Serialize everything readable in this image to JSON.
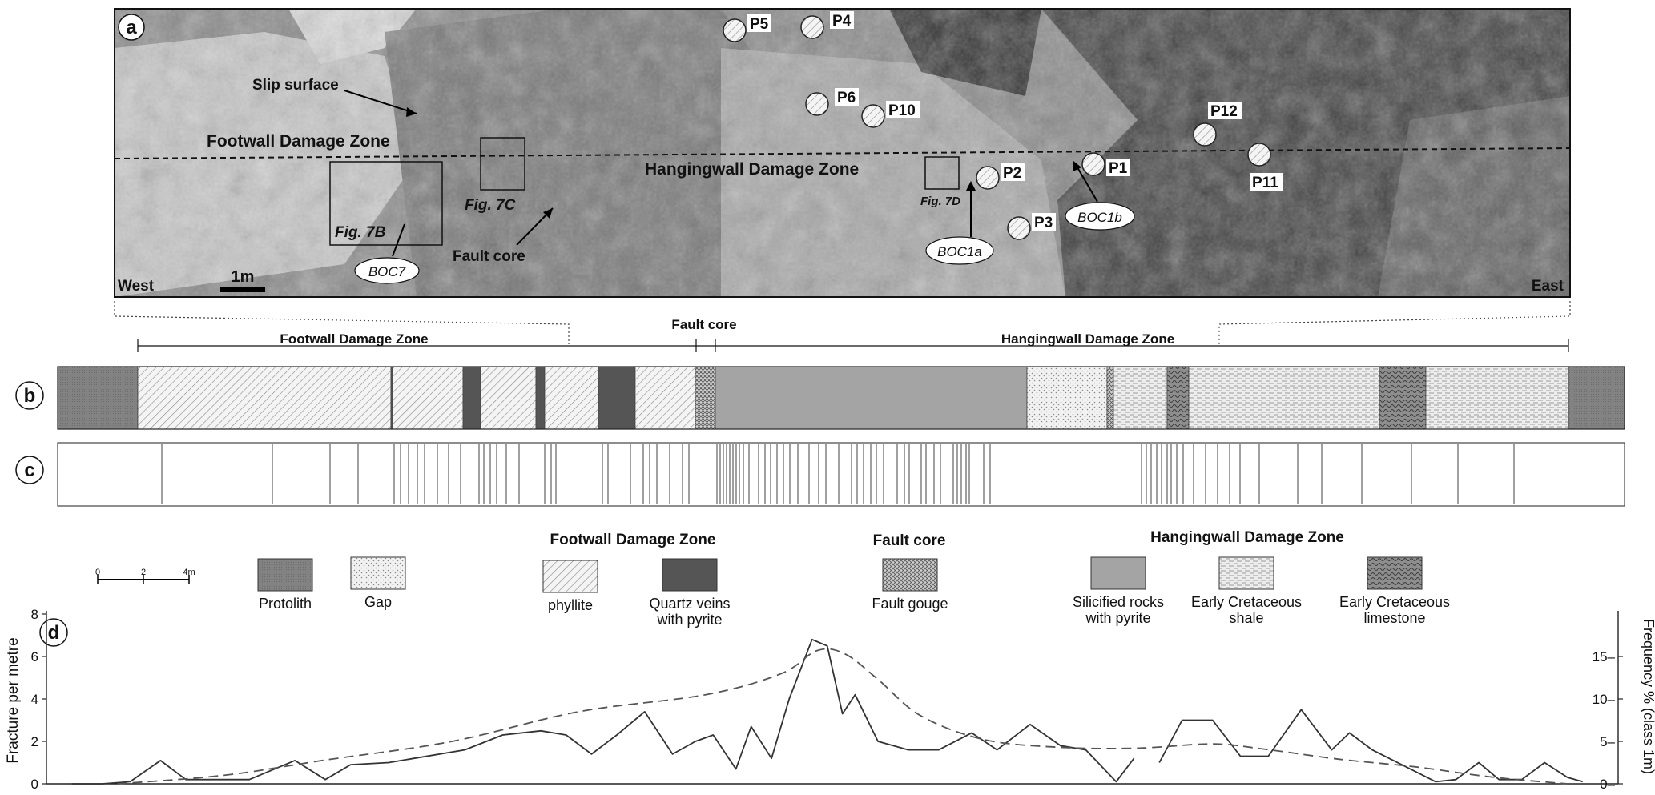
{
  "panel_a": {
    "letter": "a",
    "west": "West",
    "east": "East",
    "scale": "1m",
    "slip_surface": "Slip surface",
    "footwall_damage_zone": "Footwall Damage Zone",
    "hangingwall_damage_zone": "Hangingwall Damage Zone",
    "fault_core": "Fault core",
    "fig_7b": "Fig. 7B",
    "fig_7c": "Fig. 7C",
    "fig_7d": "Fig. 7D",
    "points": [
      "P5",
      "P4",
      "P6",
      "P10",
      "P2",
      "P3",
      "P1",
      "P12",
      "P11"
    ],
    "sample_labels": [
      "BOC7",
      "BOC1a",
      "BOC1b"
    ]
  },
  "panel_b": {
    "letter": "b",
    "footwall_label": "Footwall Damage Zone",
    "fault_core_label": "Fault core",
    "hangingwall_label": "Hangingwall Damage Zone"
  },
  "panel_c": {
    "letter": "c"
  },
  "legend": {
    "scale": {
      "zero": "0",
      "two": "2",
      "four": "4m"
    },
    "group_footwall": "Footwall Damage Zone",
    "group_fault_core": "Fault core",
    "group_hangingwall": "Hangingwall Damage Zone",
    "items": [
      {
        "key": "protolith",
        "label": "Protolith"
      },
      {
        "key": "gap",
        "label": "Gap"
      },
      {
        "key": "phyllite",
        "label": "phyllite"
      },
      {
        "key": "quartz",
        "label": "Quartz veins\nwith pyrite"
      },
      {
        "key": "gouge",
        "label": "Fault gouge"
      },
      {
        "key": "silicified",
        "label": "Silicified rocks\nwith pyrite"
      },
      {
        "key": "shale",
        "label": "Early Cretaceous\nshale"
      },
      {
        "key": "limestone",
        "label": "Early Cretaceous\nlimestone"
      }
    ]
  },
  "chart_data": {
    "type": "line",
    "panel_letter": "d",
    "ylabel": "Fracture per metre",
    "y2label": "Frequency % (class 1m)",
    "ylim": [
      0,
      8
    ],
    "y2lim": [
      0,
      20
    ],
    "yticks": [
      "0",
      "2",
      "4",
      "6",
      "8"
    ],
    "y2ticks": [
      "0",
      "5",
      "10",
      "15"
    ],
    "x_unit": "m along section",
    "series": [
      {
        "style": "solid",
        "segments": [
          [
            [
              0,
              0
            ],
            [
              1.2,
              0
            ],
            [
              2.3,
              0.1
            ],
            [
              3.5,
              1.1
            ],
            [
              4.5,
              0.2
            ],
            [
              7.0,
              0.2
            ],
            [
              8.8,
              1.1
            ],
            [
              10.0,
              0.2
            ],
            [
              11.0,
              0.9
            ],
            [
              12.5,
              1.0
            ],
            [
              13.5,
              1.2
            ],
            [
              15.5,
              1.6
            ],
            [
              17.0,
              2.3
            ],
            [
              18.5,
              2.5
            ],
            [
              19.5,
              2.3
            ],
            [
              20.5,
              1.4
            ],
            [
              21.5,
              2.3
            ],
            [
              22.6,
              3.4
            ],
            [
              23.7,
              1.4
            ],
            [
              24.6,
              2.0
            ],
            [
              25.3,
              2.3
            ],
            [
              26.2,
              0.7
            ],
            [
              26.8,
              2.7
            ],
            [
              27.6,
              1.2
            ],
            [
              28.3,
              4.0
            ],
            [
              29.2,
              6.8
            ],
            [
              29.8,
              6.5
            ],
            [
              30.4,
              3.3
            ],
            [
              30.9,
              4.2
            ],
            [
              31.8,
              2.0
            ],
            [
              33.0,
              1.6
            ],
            [
              34.2,
              1.6
            ],
            [
              35.5,
              2.4
            ],
            [
              36.5,
              1.6
            ],
            [
              37.8,
              2.8
            ],
            [
              39.0,
              1.8
            ],
            [
              40.0,
              1.6
            ],
            [
              41.2,
              0.1
            ],
            [
              41.9,
              1.2
            ]
          ],
          [
            [
              42.9,
              1.0
            ],
            [
              43.8,
              3.0
            ],
            [
              45.0,
              3.0
            ],
            [
              46.1,
              1.3
            ],
            [
              47.2,
              1.3
            ],
            [
              48.5,
              3.5
            ],
            [
              49.7,
              1.6
            ],
            [
              50.4,
              2.4
            ],
            [
              51.3,
              1.6
            ],
            [
              53.8,
              0.1
            ],
            [
              54.6,
              0.2
            ],
            [
              55.5,
              1.0
            ],
            [
              56.3,
              0.2
            ],
            [
              57.2,
              0.2
            ],
            [
              58.1,
              1.0
            ],
            [
              59.0,
              0.3
            ],
            [
              59.6,
              0.1
            ]
          ]
        ]
      },
      {
        "style": "dashed",
        "axis": "right",
        "points": [
          [
            1.8,
            0
          ],
          [
            6,
            1
          ],
          [
            10,
            2.8
          ],
          [
            15,
            5
          ],
          [
            20,
            8.5
          ],
          [
            25,
            10.5
          ],
          [
            28,
            13
          ],
          [
            29.4,
            15.7
          ],
          [
            30.5,
            15.3
          ],
          [
            31.8,
            12.3
          ],
          [
            33.5,
            8
          ],
          [
            36,
            5.2
          ],
          [
            39,
            4.3
          ],
          [
            42,
            4.2
          ],
          [
            45,
            4.7
          ],
          [
            47,
            4.1
          ],
          [
            50,
            2.9
          ],
          [
            53,
            2.0
          ],
          [
            56,
            0.8
          ],
          [
            59,
            0
          ]
        ]
      }
    ],
    "xlim": [
      -1,
      61
    ]
  }
}
